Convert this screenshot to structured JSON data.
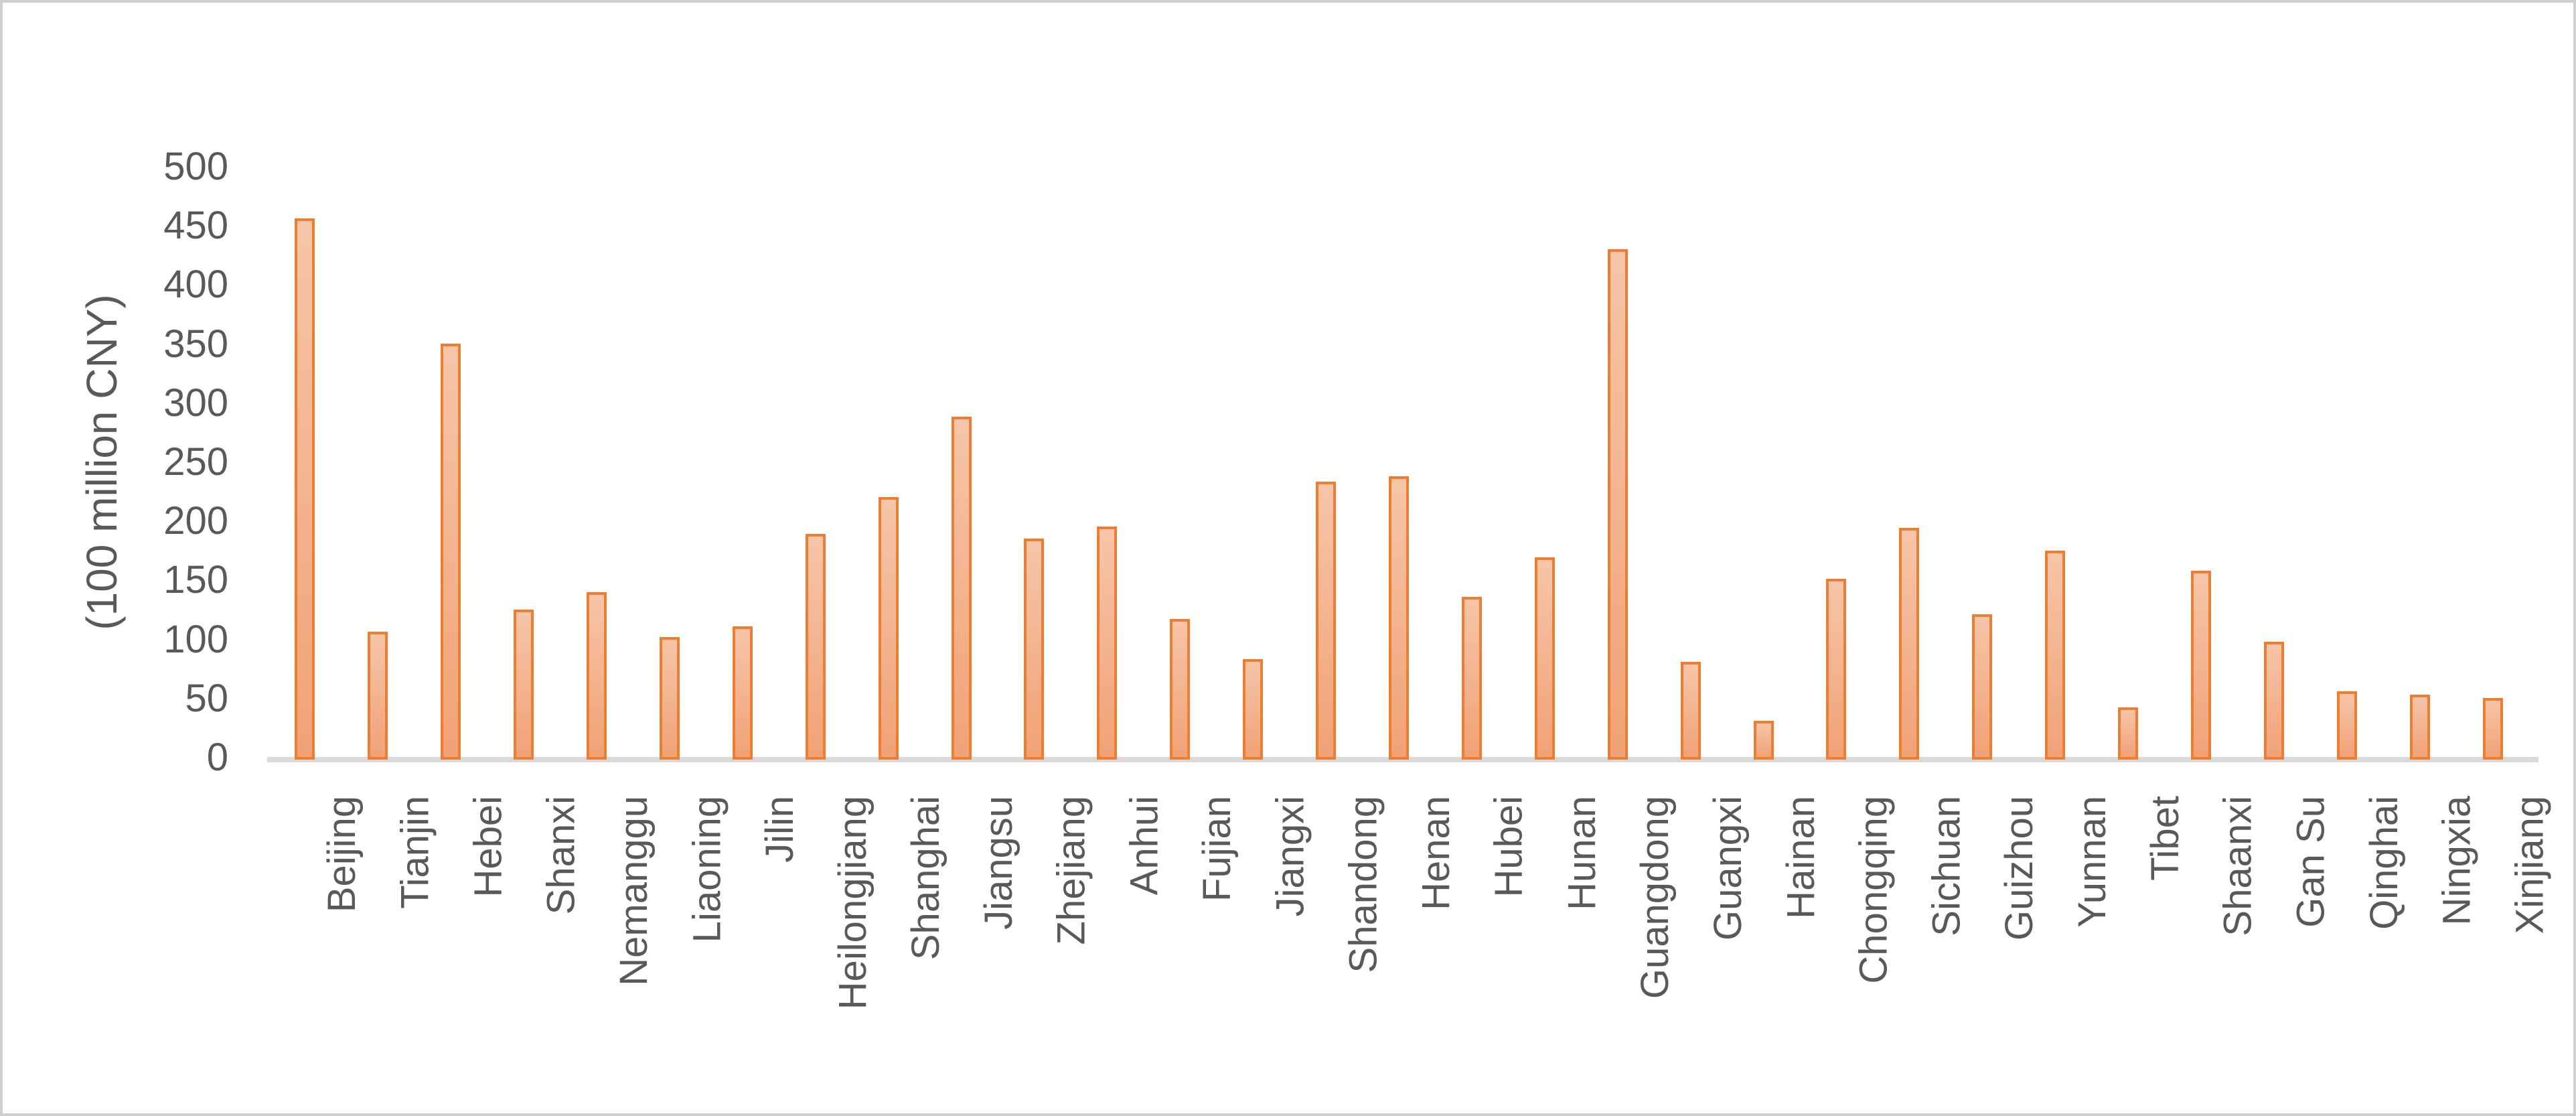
{
  "chart_data": {
    "type": "bar",
    "title": "",
    "xlabel": "",
    "ylabel": "(100 million CNY)",
    "ylim": [
      0,
      500
    ],
    "ytick_step": 50,
    "grid": false,
    "legend_position": "none",
    "categories": [
      "Beijing",
      "Tianjin",
      "Hebei",
      "Shanxi",
      "Nemanggu",
      "Liaoning",
      "Jilin",
      "Heilongjiang",
      "Shanghai",
      "Jiangsu",
      "Zhejiang",
      "Anhui",
      "Fujian",
      "Jiangxi",
      "Shandong",
      "Henan",
      "Hubei",
      "Hunan",
      "Guangdong",
      "Guangxi",
      "Hainan",
      "Chongqing",
      "Sichuan",
      "Guizhou",
      "Yunnan",
      "Tibet",
      "Shaanxi",
      "Gan Su",
      "Qinghai",
      "Ningxia",
      "Xinjiang"
    ],
    "values": [
      458,
      108,
      352,
      127,
      142,
      104,
      113,
      191,
      222,
      290,
      187,
      197,
      119,
      85,
      235,
      240,
      138,
      171,
      432,
      83,
      33,
      153,
      196,
      123,
      177,
      44,
      160,
      100,
      58,
      55,
      52
    ],
    "colors": {
      "bar_fill_top": "#f6c5a9",
      "bar_fill_bottom": "#f1a276",
      "bar_border": "#ED7D31",
      "axis_line": "#D9D9D9",
      "text": "#595959",
      "frame_border": "#CFCFCF",
      "background": "#FFFFFF"
    }
  }
}
